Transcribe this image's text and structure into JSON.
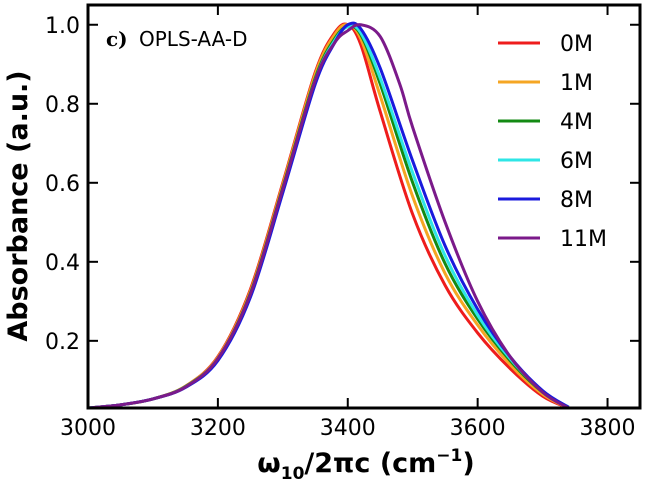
{
  "chart_data": {
    "type": "line",
    "panel_label_prefix": "c)",
    "panel_label_text": "OPLS-AA-D",
    "xlabel_main": "ω",
    "xlabel_sub": "10",
    "xlabel_rest": "/2πc (cm",
    "xlabel_sup": "−1",
    "xlabel_close": ")",
    "ylabel": "Absorbance (a.u.)",
    "xlim": [
      3000,
      3850
    ],
    "ylim": [
      0.03,
      1.05
    ],
    "xticks": [
      3000,
      3200,
      3400,
      3600,
      3800
    ],
    "yticks": [
      0.2,
      0.4,
      0.6,
      0.8,
      1.0
    ],
    "ytick_labels": [
      "0.2",
      "0.4",
      "0.6",
      "0.8",
      "1.0"
    ],
    "legend_position": "top-right",
    "series": [
      {
        "name": "0M",
        "color": "#ee1c1c",
        "x": [
          3000,
          3050,
          3100,
          3150,
          3200,
          3250,
          3300,
          3350,
          3380,
          3400,
          3420,
          3450,
          3500,
          3550,
          3600,
          3650,
          3700,
          3740
        ],
        "y": [
          0.03,
          0.038,
          0.053,
          0.085,
          0.16,
          0.33,
          0.6,
          0.88,
          0.98,
          1.0,
          0.95,
          0.78,
          0.52,
          0.34,
          0.22,
          0.13,
          0.06,
          0.03
        ]
      },
      {
        "name": "1M",
        "color": "#f5a623",
        "x": [
          3000,
          3050,
          3100,
          3150,
          3200,
          3250,
          3300,
          3350,
          3380,
          3400,
          3420,
          3450,
          3500,
          3550,
          3600,
          3650,
          3700,
          3740
        ],
        "y": [
          0.03,
          0.038,
          0.053,
          0.085,
          0.158,
          0.325,
          0.595,
          0.875,
          0.975,
          1.0,
          0.965,
          0.82,
          0.565,
          0.37,
          0.24,
          0.14,
          0.065,
          0.03
        ]
      },
      {
        "name": "4M",
        "color": "#138a13",
        "x": [
          3000,
          3050,
          3100,
          3150,
          3200,
          3250,
          3300,
          3350,
          3380,
          3400,
          3420,
          3450,
          3500,
          3550,
          3600,
          3650,
          3700,
          3740
        ],
        "y": [
          0.03,
          0.038,
          0.053,
          0.084,
          0.155,
          0.32,
          0.588,
          0.865,
          0.965,
          0.995,
          0.975,
          0.85,
          0.6,
          0.395,
          0.255,
          0.15,
          0.07,
          0.032
        ]
      },
      {
        "name": "6M",
        "color": "#2ee6e6",
        "x": [
          3000,
          3050,
          3100,
          3150,
          3200,
          3250,
          3300,
          3350,
          3380,
          3400,
          3420,
          3450,
          3500,
          3550,
          3600,
          3650,
          3700,
          3740
        ],
        "y": [
          0.03,
          0.038,
          0.053,
          0.083,
          0.153,
          0.315,
          0.582,
          0.86,
          0.96,
          0.995,
          0.98,
          0.865,
          0.625,
          0.415,
          0.265,
          0.155,
          0.072,
          0.032
        ]
      },
      {
        "name": "8M",
        "color": "#1a1add",
        "x": [
          3000,
          3050,
          3100,
          3150,
          3200,
          3250,
          3300,
          3350,
          3380,
          3400,
          3420,
          3450,
          3500,
          3550,
          3600,
          3650,
          3700,
          3740
        ],
        "y": [
          0.03,
          0.038,
          0.053,
          0.082,
          0.15,
          0.31,
          0.575,
          0.85,
          0.955,
          1.0,
          0.99,
          0.89,
          0.655,
          0.44,
          0.28,
          0.16,
          0.074,
          0.032
        ]
      },
      {
        "name": "11M",
        "color": "#7b1a8a",
        "x": [
          3000,
          3050,
          3100,
          3150,
          3200,
          3250,
          3300,
          3350,
          3380,
          3400,
          3420,
          3450,
          3480,
          3500,
          3550,
          3600,
          3650,
          3700,
          3740
        ],
        "y": [
          0.03,
          0.038,
          0.053,
          0.083,
          0.155,
          0.318,
          0.585,
          0.86,
          0.955,
          0.985,
          1.0,
          0.97,
          0.85,
          0.74,
          0.5,
          0.3,
          0.16,
          0.07,
          0.03
        ]
      }
    ]
  }
}
